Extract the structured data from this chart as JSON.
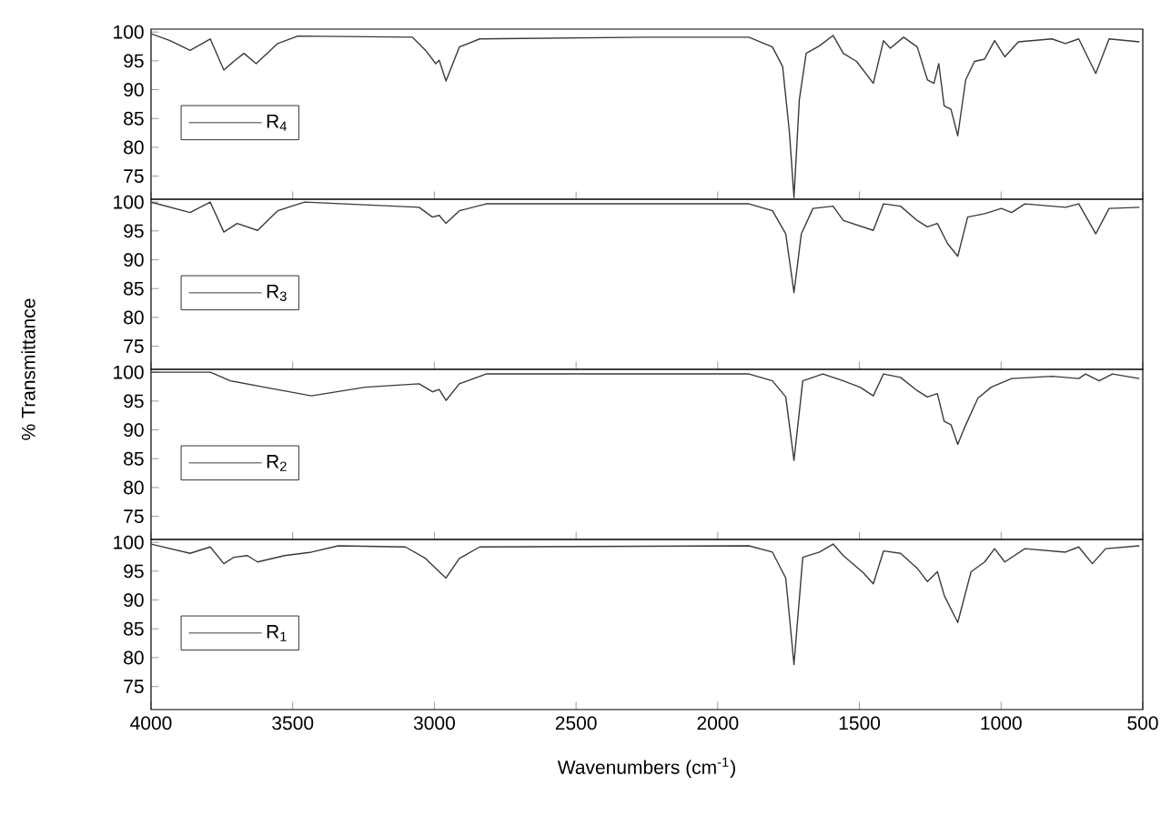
{
  "chart_data": [
    {
      "type": "line",
      "xlim": [
        4000,
        500
      ],
      "xticks": [
        4000,
        3500,
        3000,
        2500,
        2000,
        1500,
        1000,
        500
      ],
      "ylim": [
        71,
        100.5
      ],
      "yticks": [
        75,
        80,
        85,
        90,
        95,
        100
      ],
      "tick_labels": "y",
      "legend": "left",
      "grid": false,
      "series": [
        {
          "name": "R$_{4}$",
          "color": "#3a3a3a",
          "x": [
            4000,
            3933,
            3862,
            3791,
            3743,
            3708,
            3672,
            3629,
            3553,
            3482,
            3078,
            3031,
            2995,
            2983,
            2959,
            2912,
            2840,
            2246,
            1890,
            1807,
            1771,
            1747,
            1731,
            1712,
            1688,
            1641,
            1593,
            1557,
            1510,
            1451,
            1415,
            1391,
            1344,
            1296,
            1260,
            1237,
            1220,
            1201,
            1177,
            1153,
            1125,
            1094,
            1058,
            1023,
            987,
            939,
            821,
            773,
            726,
            666,
            619,
            512
          ],
          "values": [
            99.7,
            98.5,
            96.8,
            98.8,
            93.4,
            94.9,
            96.3,
            94.5,
            98,
            99.3,
            99.1,
            96.8,
            94.5,
            95.1,
            91.5,
            97.4,
            98.8,
            99.1,
            99.1,
            97.4,
            94,
            82.6,
            71.3,
            88.3,
            96.3,
            97.6,
            99.4,
            96.3,
            94.9,
            91.1,
            98.5,
            97.2,
            99.1,
            97.4,
            91.7,
            91.1,
            94.5,
            87.2,
            86.6,
            82,
            91.7,
            94.9,
            95.3,
            98.5,
            95.7,
            98.3,
            98.8,
            98,
            98.8,
            92.8,
            98.8,
            98.3
          ]
        }
      ]
    },
    {
      "type": "line",
      "xlim": [
        4000,
        500
      ],
      "xticks": [
        4000,
        3500,
        3000,
        2500,
        2000,
        1500,
        1000,
        500
      ],
      "ylim": [
        71,
        100.5
      ],
      "yticks": [
        75,
        80,
        85,
        90,
        95,
        100
      ],
      "tick_labels": "y",
      "legend": "left",
      "grid": false,
      "ylabel": "% Transmittance",
      "series": [
        {
          "name": "R$_{3}$",
          "color": "#3a3a3a",
          "x": [
            4000,
            3862,
            3791,
            3743,
            3696,
            3660,
            3624,
            3553,
            3458,
            3054,
            3007,
            2983,
            2959,
            2912,
            2817,
            1890,
            1807,
            1760,
            1731,
            1705,
            1664,
            1593,
            1557,
            1451,
            1415,
            1355,
            1296,
            1260,
            1225,
            1189,
            1153,
            1118,
            1058,
            999,
            963,
            916,
            773,
            726,
            666,
            619,
            512
          ],
          "values": [
            100,
            98.2,
            100,
            94.8,
            96.3,
            95.7,
            95.1,
            98.5,
            100,
            99.1,
            97.4,
            97.7,
            96.3,
            98.5,
            99.7,
            99.7,
            98.5,
            94.5,
            84.3,
            94.5,
            98.9,
            99.3,
            96.8,
            95.1,
            99.7,
            99.3,
            96.8,
            95.7,
            96.3,
            92.8,
            90.6,
            97.4,
            98,
            98.9,
            98.2,
            99.7,
            99.1,
            99.7,
            94.5,
            98.9,
            99.1
          ]
        }
      ]
    },
    {
      "type": "line",
      "xlim": [
        4000,
        500
      ],
      "xticks": [
        4000,
        3500,
        3000,
        2500,
        2000,
        1500,
        1000,
        500
      ],
      "ylim": [
        71,
        100.5
      ],
      "yticks": [
        75,
        80,
        85,
        90,
        95,
        100
      ],
      "tick_labels": "y",
      "legend": "left",
      "grid": false,
      "series": [
        {
          "name": "R$_{2}$",
          "color": "#3a3a3a",
          "x": [
            4000,
            3791,
            3720,
            3600,
            3434,
            3244,
            3054,
            3007,
            2983,
            2959,
            2912,
            2817,
            1890,
            1807,
            1760,
            1731,
            1700,
            1629,
            1557,
            1498,
            1451,
            1415,
            1355,
            1296,
            1260,
            1225,
            1201,
            1177,
            1153,
            1130,
            1082,
            1035,
            963,
            821,
            726,
            702,
            654,
            607,
            512
          ],
          "values": [
            100,
            100,
            98.5,
            97.4,
            95.9,
            97.4,
            98,
            96.6,
            97,
            95.1,
            98,
            99.7,
            99.7,
            98.5,
            95.7,
            84.7,
            98.5,
            99.7,
            98.5,
            97.4,
            95.9,
            99.7,
            99.1,
            96.8,
            95.7,
            96.3,
            91.5,
            90.9,
            87.5,
            90.3,
            95.5,
            97.4,
            98.9,
            99.3,
            98.9,
            99.7,
            98.5,
            99.7,
            98.9
          ]
        }
      ]
    },
    {
      "type": "line",
      "xlim": [
        4000,
        500
      ],
      "xticks": [
        4000,
        3500,
        3000,
        2500,
        2000,
        1500,
        1000,
        500
      ],
      "ylim": [
        71,
        100.5
      ],
      "yticks": [
        75,
        80,
        85,
        90,
        95,
        100
      ],
      "legend": "left",
      "grid": false,
      "xlabel": "Wavenumbers (cm$^{-1}$)",
      "series": [
        {
          "name": "R$_{1}$",
          "color": "#3a3a3a",
          "x": [
            4000,
            3862,
            3791,
            3743,
            3708,
            3660,
            3624,
            3529,
            3434,
            3339,
            3102,
            3031,
            2983,
            2959,
            2912,
            2840,
            1890,
            1807,
            1760,
            1731,
            1700,
            1641,
            1593,
            1557,
            1486,
            1451,
            1415,
            1355,
            1296,
            1260,
            1225,
            1200,
            1153,
            1106,
            1058,
            1023,
            987,
            916,
            773,
            726,
            678,
            631,
            512
          ],
          "values": [
            99.7,
            98.1,
            99.2,
            96.3,
            97.4,
            97.7,
            96.6,
            97.7,
            98.3,
            99.4,
            99.2,
            97.2,
            94.9,
            93.8,
            97.2,
            99.2,
            99.4,
            98.3,
            93.8,
            78.8,
            97.4,
            98.3,
            99.7,
            97.7,
            94.7,
            92.8,
            98.5,
            98.1,
            95.5,
            93.2,
            94.9,
            90.7,
            86.1,
            94.9,
            96.6,
            98.9,
            96.6,
            98.9,
            98.3,
            99.2,
            96.3,
            98.9,
            99.4
          ]
        }
      ]
    }
  ]
}
